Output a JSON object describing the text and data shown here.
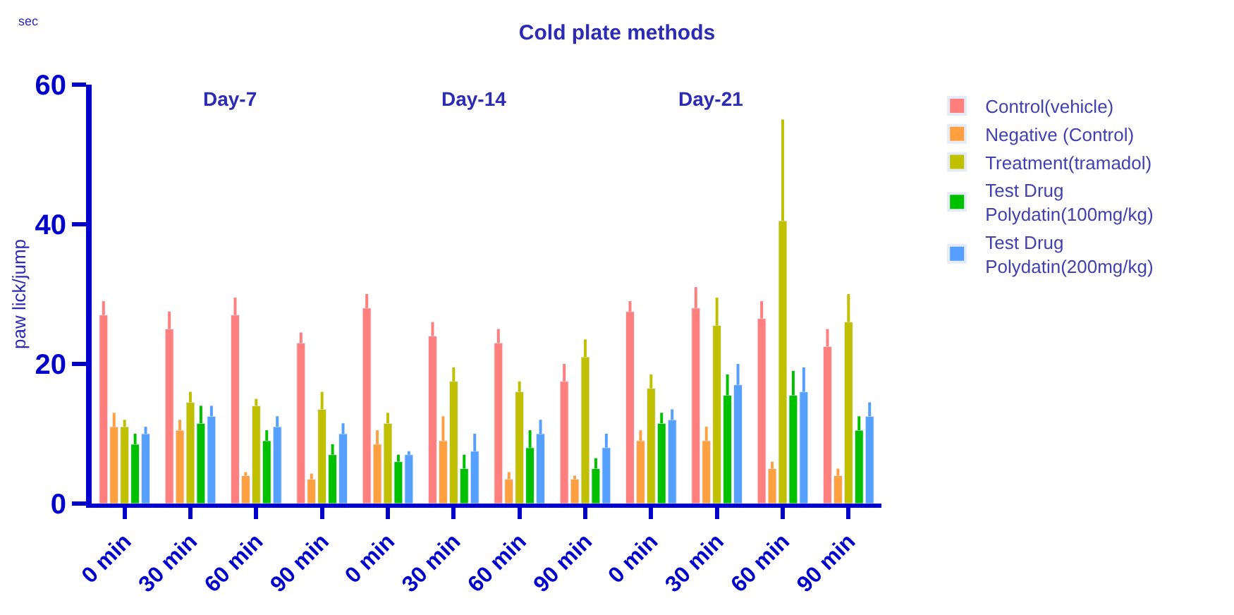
{
  "chart_data": {
    "type": "bar",
    "title": "Cold plate methods",
    "ylabel": "paw lick/jump",
    "annotations": [
      "sec",
      "Day-7",
      "Day-14",
      "Day-21"
    ],
    "categories": [
      "0 min",
      "30 min",
      "60 min",
      "90 min",
      "0 min",
      "30 min",
      "60 min",
      "90 min",
      "0 min",
      "30 min",
      "60 min",
      "90 min"
    ],
    "series": [
      {
        "name": "Control(vehicle)",
        "color": "#ff7f7f",
        "values": [
          27,
          25,
          27,
          23,
          28,
          24,
          23,
          17.5,
          27.5,
          28,
          26.5,
          22.5
        ],
        "errors": [
          [
            27,
            29
          ],
          [
            25,
            27.5
          ],
          [
            27,
            29.5
          ],
          [
            23,
            24.5
          ],
          [
            28,
            30
          ],
          [
            24,
            26
          ],
          [
            23,
            25
          ],
          [
            17.5,
            20
          ],
          [
            27.5,
            29
          ],
          [
            28,
            31
          ],
          [
            26.5,
            29
          ],
          [
            22.5,
            25
          ]
        ]
      },
      {
        "name": "Negative (Control)",
        "color": "#ffa040",
        "values": [
          11,
          10.5,
          4,
          3.5,
          8.5,
          9,
          3.5,
          3.5,
          9,
          9,
          5,
          4
        ],
        "errors": [
          [
            11,
            13
          ],
          [
            10.5,
            12
          ],
          [
            4,
            4.5
          ],
          [
            3.5,
            4.3
          ],
          [
            8.5,
            10.5
          ],
          [
            9,
            12.5
          ],
          [
            3.5,
            4.5
          ],
          [
            3.5,
            4
          ],
          [
            9,
            10.5
          ],
          [
            9,
            11
          ],
          [
            5,
            6
          ],
          [
            4,
            5
          ]
        ]
      },
      {
        "name": "Treatment(tramadol)",
        "color": "#c0c000",
        "values": [
          11,
          14.5,
          14,
          13.5,
          11.5,
          17.5,
          16,
          21,
          16.5,
          25.5,
          40.5,
          26
        ],
        "errors": [
          [
            11,
            12
          ],
          [
            14.5,
            16
          ],
          [
            14,
            15
          ],
          [
            13.5,
            16
          ],
          [
            11.5,
            13
          ],
          [
            17.5,
            19.5
          ],
          [
            16,
            17.5
          ],
          [
            21,
            23.5
          ],
          [
            16.5,
            18.5
          ],
          [
            25.5,
            29.5
          ],
          [
            40.5,
            55
          ],
          [
            26,
            30
          ]
        ]
      },
      {
        "name": "Test Drug\nPolydatin(100mg/kg)",
        "color": "#00c000",
        "values": [
          8.5,
          11.5,
          9,
          7,
          6,
          5,
          8,
          5,
          11.5,
          15.5,
          15.5,
          10.5
        ],
        "errors": [
          [
            8.5,
            10
          ],
          [
            11.5,
            14
          ],
          [
            9,
            10.5
          ],
          [
            7,
            8.5
          ],
          [
            6,
            7
          ],
          [
            5,
            7
          ],
          [
            8,
            10.5
          ],
          [
            5,
            6.5
          ],
          [
            11.5,
            13
          ],
          [
            15.5,
            18.5
          ],
          [
            15.5,
            19
          ],
          [
            10.5,
            12.5
          ]
        ]
      },
      {
        "name": "Test Drug\nPolydatin(200mg/kg)",
        "color": "#55a0ff",
        "values": [
          10,
          12.5,
          11,
          10,
          7,
          7.5,
          10,
          8,
          12,
          17,
          16,
          12.5
        ],
        "errors": [
          [
            10,
            11
          ],
          [
            12.5,
            14
          ],
          [
            11,
            12.5
          ],
          [
            10,
            11.5
          ],
          [
            7,
            7.5
          ],
          [
            7.5,
            10
          ],
          [
            10,
            12
          ],
          [
            8,
            10
          ],
          [
            12,
            13.5
          ],
          [
            17,
            20
          ],
          [
            16,
            19.5
          ],
          [
            12.5,
            14.5
          ]
        ]
      }
    ],
    "ylim": [
      0,
      60
    ],
    "yticks": [
      0,
      20,
      40,
      60
    ],
    "legend": "top right"
  }
}
